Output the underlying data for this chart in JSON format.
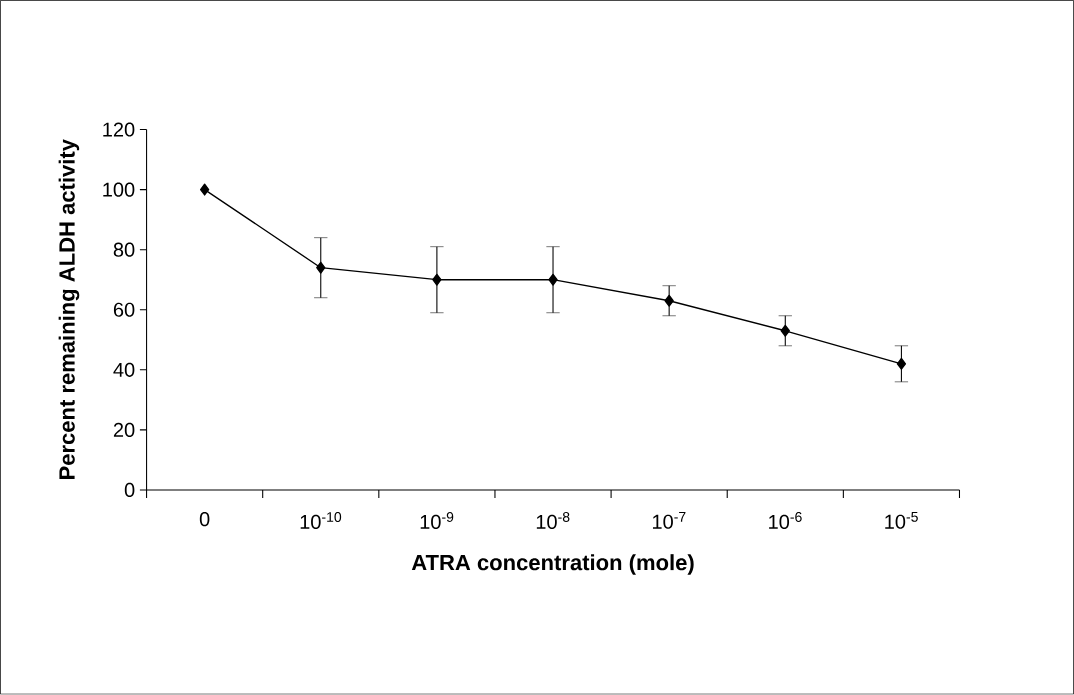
{
  "chart_data": {
    "type": "line",
    "categories": [
      "0",
      "10$^{-10}$",
      "10$^{-9}$",
      "10$^{-8}$",
      "10$^{-7}$",
      "10$^{-6}$",
      "10$^{-5}$"
    ],
    "xlabel": "ATRA concentration (mole)",
    "ylabel": "Percent remaining ALDH activity",
    "series": [
      {
        "color": "#000000",
        "values": [
          100,
          74,
          70,
          70,
          63,
          53,
          42
        ],
        "errors": [
          null,
          10,
          11,
          11,
          5,
          5,
          6
        ]
      }
    ],
    "ylim": [
      0,
      120
    ],
    "yticks": [
      0,
      20,
      40,
      60,
      80,
      100,
      120
    ],
    "marker": "diamond",
    "line_style": "solid",
    "grid": false
  }
}
